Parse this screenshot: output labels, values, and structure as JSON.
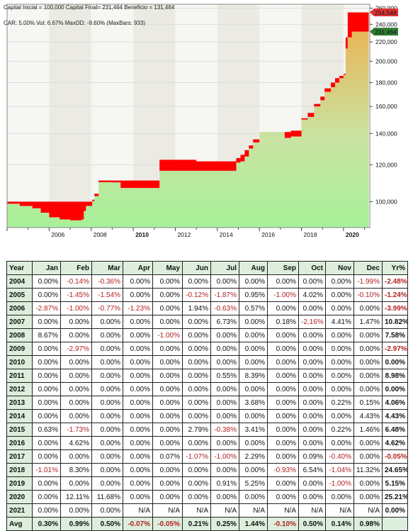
{
  "header": {
    "line1": "Capital Inicial = 100,000   Capital Final= 231,464   Beneficio = 131,464",
    "line2": "CAR: 5.00%   Vol: 6.67%   MaxDD: -9.60% (MaxBars: 933)"
  },
  "colors": {
    "equity_fill_top": "#e8b65a",
    "equity_fill_bottom": "#a8f098",
    "drawdown": "#ff0000",
    "band_light": "#f6f6f2",
    "band_dark": "#ebebe4",
    "value_label_red": "#dd3333",
    "value_label_green": "#2e7d32",
    "table_header_bg": "#ddeedd",
    "negative_text": "#b22222"
  },
  "chart_data": {
    "type": "area",
    "title": "",
    "xlabel": "",
    "ylabel": "",
    "y_scale": "log",
    "ylim": [
      88000,
      265000
    ],
    "xlim": [
      2004.0,
      2021.25
    ],
    "x_ticks": [
      "2006",
      "2008",
      "2010",
      "2012",
      "2014",
      "2016",
      "2018",
      "2020"
    ],
    "x_ticks_bold": [
      "2010",
      "2020"
    ],
    "y_ticks": [
      "100,000",
      "120,000",
      "140,000",
      "160,000",
      "180,000",
      "200,000",
      "220,000",
      "240,000",
      "260,000"
    ],
    "value_labels": [
      {
        "text": "254,548",
        "value": 254548,
        "role": "peak"
      },
      {
        "text": "231,464",
        "value": 231464,
        "role": "final"
      }
    ],
    "series": [
      {
        "role": "equity",
        "x": [
          2004.0,
          2004.6,
          2005.2,
          2005.6,
          2006.0,
          2006.5,
          2007.0,
          2007.55,
          2007.65,
          2007.75,
          2008.05,
          2008.15,
          2008.35,
          2009.0,
          2009.4,
          2010.0,
          2011.1,
          2011.25,
          2011.5,
          2012.0,
          2013.0,
          2013.5,
          2014.0,
          2014.5,
          2014.9,
          2015.1,
          2015.3,
          2015.5,
          2015.7,
          2016.0,
          2017.0,
          2017.2,
          2017.5,
          2018.0,
          2018.3,
          2018.6,
          2018.9,
          2019.1,
          2019.4,
          2019.6,
          2019.8,
          2020.0,
          2020.1,
          2020.2,
          2020.4,
          2021.0,
          2021.2
        ],
        "y": [
          99000,
          97900,
          96800,
          94700,
          92600,
          91600,
          91200,
          91600,
          95500,
          97900,
          100200,
          102800,
          110100,
          110000,
          107000,
          107000,
          107000,
          116500,
          116500,
          116500,
          116500,
          116500,
          116500,
          116500,
          121300,
          122000,
          125000,
          130000,
          134000,
          141000,
          141000,
          137000,
          138000,
          150000,
          152000,
          160000,
          165000,
          172000,
          176000,
          180000,
          184000,
          187000,
          213000,
          225000,
          231464,
          231464,
          231464
        ]
      },
      {
        "role": "peak",
        "x": [
          2004.0,
          2004.6,
          2005.2,
          2005.6,
          2006.0,
          2006.5,
          2007.0,
          2007.55,
          2007.65,
          2007.75,
          2008.05,
          2008.15,
          2008.35,
          2009.0,
          2009.4,
          2010.0,
          2011.1,
          2011.25,
          2011.5,
          2012.0,
          2013.0,
          2013.5,
          2014.0,
          2014.5,
          2014.9,
          2015.1,
          2015.3,
          2015.5,
          2015.7,
          2016.0,
          2017.0,
          2017.2,
          2017.5,
          2018.0,
          2018.3,
          2018.6,
          2018.9,
          2019.1,
          2019.4,
          2019.6,
          2019.8,
          2020.0,
          2020.1,
          2020.2,
          2020.4,
          2021.0,
          2021.2
        ],
        "y": [
          100000,
          100000,
          100000,
          100000,
          100000,
          100000,
          100000,
          100000,
          100000,
          100000,
          101000,
          104000,
          111000,
          111000,
          111000,
          111000,
          111000,
          123000,
          123000,
          123000,
          122000,
          122000,
          122000,
          122000,
          124000,
          126000,
          129000,
          132000,
          136000,
          141000,
          141000,
          141000,
          142000,
          151000,
          155000,
          162000,
          168000,
          175000,
          180000,
          184000,
          186000,
          188000,
          225000,
          254548,
          254548,
          254548,
          254548
        ]
      }
    ]
  },
  "table": {
    "columns": [
      "Year",
      "Jan",
      "Feb",
      "Mar",
      "Apr",
      "May",
      "Jun",
      "Jul",
      "Aug",
      "Sep",
      "Oct",
      "Nov",
      "Dec",
      "Yr%"
    ],
    "rows": [
      [
        "2004",
        "0.00%",
        "-0.14%",
        "-0.36%",
        "0.00%",
        "0.00%",
        "0.00%",
        "0.00%",
        "0.00%",
        "0.00%",
        "0.00%",
        "0.00%",
        "-1.99%",
        "-2.48%"
      ],
      [
        "2005",
        "0.00%",
        "-1.45%",
        "-1.54%",
        "0.00%",
        "0.00%",
        "-0.12%",
        "-1.87%",
        "0.95%",
        "-1.00%",
        "4.02%",
        "0.00%",
        "-0.10%",
        "-1.24%"
      ],
      [
        "2006",
        "-2.87%",
        "-1.00%",
        "-0.77%",
        "-1.23%",
        "0.00%",
        "1.94%",
        "-0.63%",
        "0.57%",
        "0.00%",
        "0.00%",
        "0.00%",
        "0.00%",
        "-3.99%"
      ],
      [
        "2007",
        "0.00%",
        "0.00%",
        "0.00%",
        "0.00%",
        "0.00%",
        "0.00%",
        "6.73%",
        "0.00%",
        "0.18%",
        "-2.16%",
        "4.41%",
        "1.47%",
        "10.82%"
      ],
      [
        "2008",
        "8.67%",
        "0.00%",
        "0.00%",
        "0.00%",
        "-1.00%",
        "0.00%",
        "0.00%",
        "0.00%",
        "0.00%",
        "0.00%",
        "0.00%",
        "0.00%",
        "7.58%"
      ],
      [
        "2009",
        "0.00%",
        "-2.97%",
        "0.00%",
        "0.00%",
        "0.00%",
        "0.00%",
        "0.00%",
        "0.00%",
        "0.00%",
        "0.00%",
        "0.00%",
        "0.00%",
        "-2.97%"
      ],
      [
        "2010",
        "0.00%",
        "0.00%",
        "0.00%",
        "0.00%",
        "0.00%",
        "0.00%",
        "0.00%",
        "0.00%",
        "0.00%",
        "0.00%",
        "0.00%",
        "0.00%",
        "0.00%"
      ],
      [
        "2011",
        "0.00%",
        "0.00%",
        "0.00%",
        "0.00%",
        "0.00%",
        "0.00%",
        "0.55%",
        "8.39%",
        "0.00%",
        "0.00%",
        "0.00%",
        "0.00%",
        "8.98%"
      ],
      [
        "2012",
        "0.00%",
        "0.00%",
        "0.00%",
        "0.00%",
        "0.00%",
        "0.00%",
        "0.00%",
        "0.00%",
        "0.00%",
        "0.00%",
        "0.00%",
        "0.00%",
        "0.00%"
      ],
      [
        "2013",
        "0.00%",
        "0.00%",
        "0.00%",
        "0.00%",
        "0.00%",
        "0.00%",
        "0.00%",
        "3.68%",
        "0.00%",
        "0.00%",
        "0.22%",
        "0.15%",
        "4.06%"
      ],
      [
        "2014",
        "0.00%",
        "0.00%",
        "0.00%",
        "0.00%",
        "0.00%",
        "0.00%",
        "0.00%",
        "0.00%",
        "0.00%",
        "0.00%",
        "0.00%",
        "4.43%",
        "4.43%"
      ],
      [
        "2015",
        "0.63%",
        "-1.73%",
        "0.00%",
        "0.00%",
        "0.00%",
        "2.79%",
        "-0.38%",
        "3.41%",
        "0.00%",
        "0.00%",
        "0.22%",
        "1.46%",
        "6.48%"
      ],
      [
        "2016",
        "0.00%",
        "4.62%",
        "0.00%",
        "0.00%",
        "0.00%",
        "0.00%",
        "0.00%",
        "0.00%",
        "0.00%",
        "0.00%",
        "0.00%",
        "0.00%",
        "4.62%"
      ],
      [
        "2017",
        "0.00%",
        "0.00%",
        "0.00%",
        "0.00%",
        "0.07%",
        "-1.07%",
        "-1.00%",
        "2.29%",
        "0.00%",
        "0.09%",
        "-0.40%",
        "0.00%",
        "-0.05%"
      ],
      [
        "2018",
        "-1.01%",
        "8.30%",
        "0.00%",
        "0.00%",
        "0.00%",
        "0.00%",
        "0.00%",
        "0.00%",
        "-0.93%",
        "6.54%",
        "-1.04%",
        "11.32%",
        "24.65%"
      ],
      [
        "2019",
        "0.00%",
        "0.00%",
        "0.00%",
        "0.00%",
        "0.00%",
        "0.00%",
        "0.91%",
        "5.25%",
        "0.00%",
        "0.00%",
        "-1.00%",
        "0.00%",
        "5.15%"
      ],
      [
        "2020",
        "0.00%",
        "12.11%",
        "11.68%",
        "0.00%",
        "0.00%",
        "0.00%",
        "0.00%",
        "0.00%",
        "0.00%",
        "0.00%",
        "0.00%",
        "0.00%",
        "25.21%"
      ],
      [
        "2021",
        "0.00%",
        "0.00%",
        "0.00%",
        "N/A",
        "N/A",
        "N/A",
        "N/A",
        "N/A",
        "N/A",
        "N/A",
        "N/A",
        "N/A",
        "0.00%"
      ]
    ],
    "avg_row": [
      "Avg",
      "0.30%",
      "0.99%",
      "0.50%",
      "-0.07%",
      "-0.05%",
      "0.21%",
      "0.25%",
      "1.44%",
      "-0.10%",
      "0.50%",
      "0.14%",
      "0.98%",
      ""
    ]
  }
}
